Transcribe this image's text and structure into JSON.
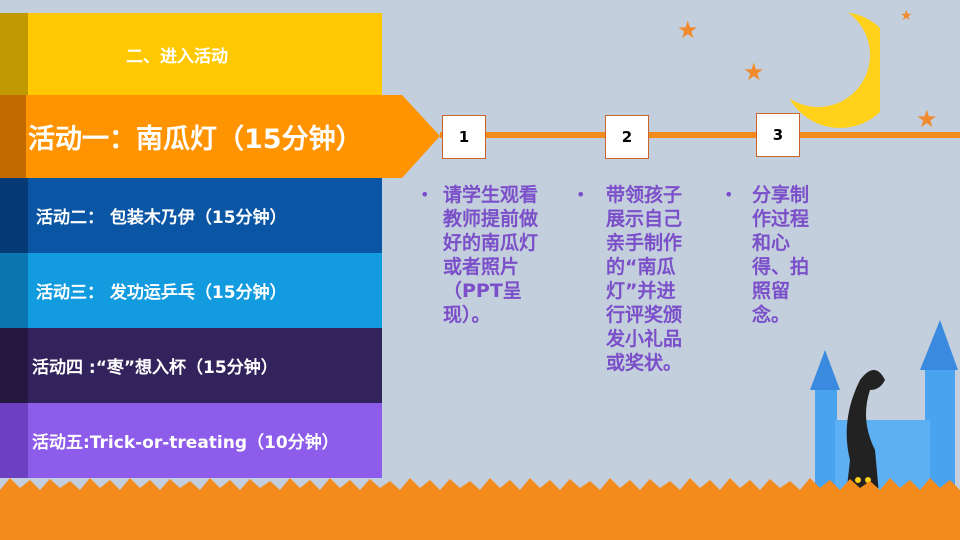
{
  "header": {
    "title": "二、进入活动"
  },
  "activities": [
    {
      "label": "活动一：南瓜灯（15分钟）",
      "color": "#ff9300"
    },
    {
      "label": "活动二： 包装木乃伊（15分钟）",
      "color": "#0a56a4"
    },
    {
      "label": "活动三： 发功运乒乓（15分钟）",
      "color": "#139be0"
    },
    {
      "label": "活动四 :“枣”想入杯（15分钟）",
      "color": "#33235c"
    },
    {
      "label": "活动五:Trick-or-treating（10分钟）",
      "color": "#8d5cea"
    }
  ],
  "steps": [
    {
      "number": "1",
      "text": "请学生观看教师提前做好的南瓜灯或者照片（PPT呈现）。"
    },
    {
      "number": "2",
      "text": "带领孩子展示自己亲手制作的“南瓜灯”并进行评奖颁发小礼品或奖状。"
    },
    {
      "number": "3",
      "text": "分享制作过程和心得、拍照留念。"
    }
  ],
  "colors": {
    "accent": "#f38a1c",
    "text": "#7b4fc9",
    "background": "#c3cfdd"
  }
}
